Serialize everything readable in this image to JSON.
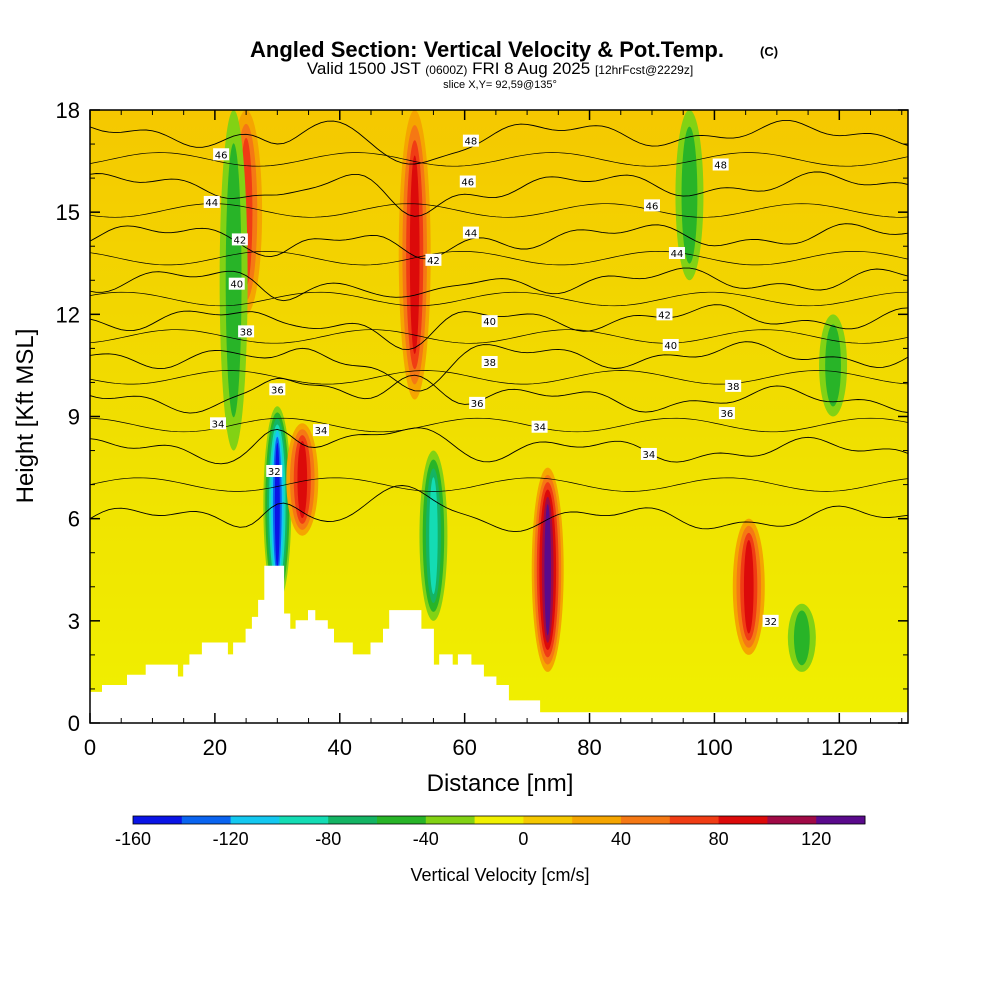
{
  "chart_data": {
    "type": "heatmap",
    "title": "Angled Section: Vertical Velocity & Pot.Temp.",
    "title_mark": "(C)",
    "subtitle": {
      "valid": "Valid 1500 JST",
      "zulu": "(0600Z)",
      "date": "FRI 8 Aug 2025",
      "forecast": "[12hrFcst@2229z]"
    },
    "slice_label": "slice X,Y= 92,59@135°",
    "xlabel": "Distance [nm]",
    "ylabel": "Height [Kft MSL]",
    "xlim": [
      0,
      131
    ],
    "ylim": [
      0,
      18
    ],
    "x_ticks": [
      "0",
      "20",
      "40",
      "60",
      "80",
      "100",
      "120"
    ],
    "y_ticks": [
      "0",
      "3",
      "6",
      "9",
      "12",
      "15",
      "18"
    ],
    "colorbar": {
      "title": "Vertical Velocity [cm/s]",
      "range": [
        -160,
        140
      ],
      "tick_labels": [
        "-160",
        "-120",
        "-80",
        "-40",
        "0",
        "40",
        "80",
        "120"
      ],
      "colors": [
        "#0a14e6",
        "#0a64f0",
        "#14c8f0",
        "#14dcb4",
        "#14b464",
        "#28b428",
        "#82d214",
        "#f0f000",
        "#f5c800",
        "#f5a500",
        "#f57814",
        "#f03c14",
        "#dc0a0a",
        "#a00a46",
        "#5a0a8c"
      ]
    },
    "terrain_kft": [
      [
        0,
        0.9
      ],
      [
        2,
        0.9
      ],
      [
        2,
        1.1
      ],
      [
        6,
        1.1
      ],
      [
        6,
        1.4
      ],
      [
        9,
        1.4
      ],
      [
        9,
        1.7
      ],
      [
        14,
        1.7
      ],
      [
        14,
        1.35
      ],
      [
        15,
        1.35
      ],
      [
        15,
        1.7
      ],
      [
        16,
        1.7
      ],
      [
        16,
        2.0
      ],
      [
        18,
        2.0
      ],
      [
        18,
        2.35
      ],
      [
        22,
        2.35
      ],
      [
        22,
        2.0
      ],
      [
        23,
        2.0
      ],
      [
        23,
        2.35
      ],
      [
        25,
        2.35
      ],
      [
        25,
        2.75
      ],
      [
        26,
        2.75
      ],
      [
        26,
        3.1
      ],
      [
        27,
        3.1
      ],
      [
        27,
        3.6
      ],
      [
        28,
        3.6
      ],
      [
        28,
        4.6
      ],
      [
        31,
        4.6
      ],
      [
        31,
        3.2
      ],
      [
        32,
        3.2
      ],
      [
        32,
        2.75
      ],
      [
        33,
        2.75
      ],
      [
        33,
        3.0
      ],
      [
        35,
        3.0
      ],
      [
        35,
        3.3
      ],
      [
        36,
        3.3
      ],
      [
        36,
        3.0
      ],
      [
        38,
        3.0
      ],
      [
        38,
        2.75
      ],
      [
        39,
        2.75
      ],
      [
        39,
        2.35
      ],
      [
        40,
        2.35
      ],
      [
        40,
        2.35
      ],
      [
        42,
        2.35
      ],
      [
        42,
        2.0
      ],
      [
        45,
        2.0
      ],
      [
        45,
        2.35
      ],
      [
        47,
        2.35
      ],
      [
        47,
        2.75
      ],
      [
        48,
        2.75
      ],
      [
        48,
        3.3
      ],
      [
        53,
        3.3
      ],
      [
        53,
        2.75
      ],
      [
        55,
        2.75
      ],
      [
        55,
        1.7
      ],
      [
        56,
        1.7
      ],
      [
        56,
        2.0
      ],
      [
        58,
        2.0
      ],
      [
        58,
        1.7
      ],
      [
        59,
        1.7
      ],
      [
        59,
        2.0
      ],
      [
        61,
        2.0
      ],
      [
        61,
        1.7
      ],
      [
        63,
        1.7
      ],
      [
        63,
        1.35
      ],
      [
        65,
        1.35
      ],
      [
        65,
        1.1
      ],
      [
        67,
        1.1
      ],
      [
        67,
        0.65
      ],
      [
        72,
        0.65
      ],
      [
        72,
        0.3
      ],
      [
        131,
        0.3
      ]
    ],
    "vertical_velocity_features_cm_s": [
      {
        "x": 52,
        "y0": 9.5,
        "y1": 18.0,
        "peak": 90
      },
      {
        "x": 73.3,
        "y0": 1.5,
        "y1": 7.5,
        "peak": 130
      },
      {
        "x": 30,
        "y0": 3.5,
        "y1": 9.3,
        "peak": -150
      },
      {
        "x": 55,
        "y0": 3.0,
        "y1": 8.0,
        "peak": -90
      },
      {
        "x": 34,
        "y0": 5.5,
        "y1": 8.8,
        "peak": 85
      },
      {
        "x": 105.5,
        "y0": 2.0,
        "y1": 6.0,
        "peak": 80
      },
      {
        "x": 25,
        "y0": 12.0,
        "y1": 18.0,
        "peak": 60
      },
      {
        "x": 23,
        "y0": 8.0,
        "y1": 18.0,
        "peak": -40
      },
      {
        "x": 96,
        "y0": 13.0,
        "y1": 18.0,
        "peak": -40
      },
      {
        "x": 119,
        "y0": 9.0,
        "y1": 12.0,
        "peak": -40
      },
      {
        "x": 114,
        "y0": 1.5,
        "y1": 3.5,
        "peak": -50
      }
    ],
    "potential_temperature_contours_c": [
      {
        "label": "32",
        "labels_at": [
          [
            29.5,
            7.4
          ],
          [
            109.0,
            3.0
          ]
        ]
      },
      {
        "label": "34",
        "labels_at": [
          [
            20.5,
            8.8
          ],
          [
            37.0,
            8.6
          ],
          [
            72.0,
            8.7
          ],
          [
            89.5,
            7.9
          ]
        ]
      },
      {
        "label": "36",
        "labels_at": [
          [
            30.0,
            9.8
          ],
          [
            62.0,
            9.4
          ],
          [
            102.0,
            9.1
          ]
        ]
      },
      {
        "label": "38",
        "labels_at": [
          [
            25.0,
            11.5
          ],
          [
            64.0,
            10.6
          ],
          [
            103.0,
            9.9
          ]
        ]
      },
      {
        "label": "40",
        "labels_at": [
          [
            23.5,
            12.9
          ],
          [
            64.0,
            11.8
          ],
          [
            93.0,
            11.1
          ]
        ]
      },
      {
        "label": "42",
        "labels_at": [
          [
            24.0,
            14.2
          ],
          [
            55.0,
            13.6
          ],
          [
            92.0,
            12.0
          ]
        ]
      },
      {
        "label": "44",
        "labels_at": [
          [
            19.5,
            15.3
          ],
          [
            61.0,
            14.4
          ],
          [
            94.0,
            13.8
          ]
        ]
      },
      {
        "label": "46",
        "labels_at": [
          [
            21.0,
            16.7
          ],
          [
            60.5,
            15.9
          ],
          [
            90.0,
            15.2
          ]
        ]
      },
      {
        "label": "48",
        "labels_at": [
          [
            61.0,
            17.1
          ],
          [
            101.0,
            16.4
          ]
        ]
      }
    ]
  }
}
